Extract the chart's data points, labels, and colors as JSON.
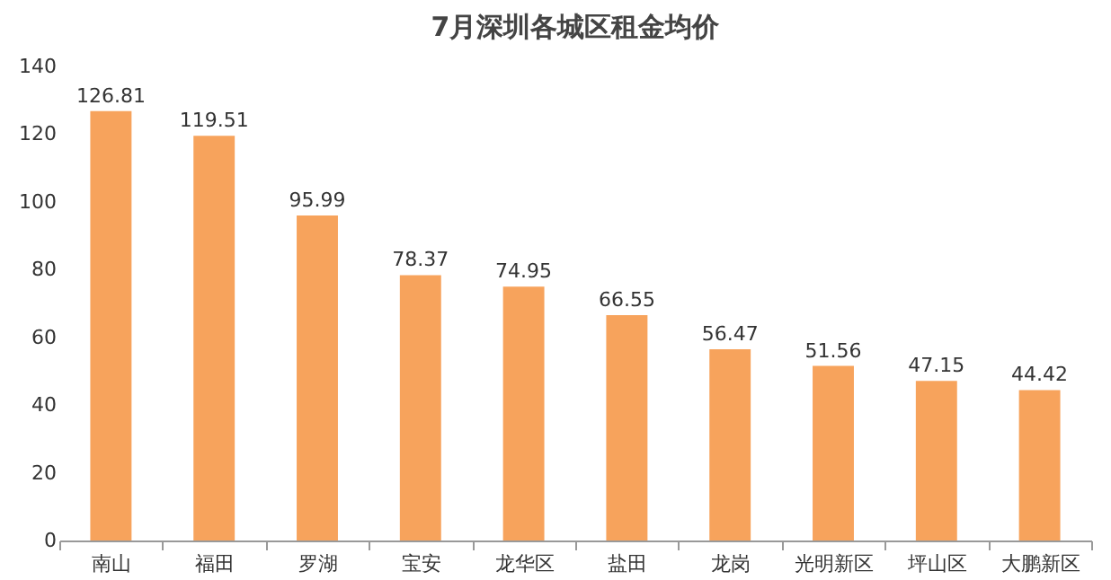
{
  "chart_data": {
    "type": "bar",
    "title": "7月深圳各城区租金均价",
    "categories": [
      "南山",
      "福田",
      "罗湖",
      "宝安",
      "龙华区",
      "盐田",
      "龙岗",
      "光明新区",
      "坪山区",
      "大鹏新区"
    ],
    "values": [
      126.81,
      119.51,
      95.99,
      78.37,
      74.95,
      66.55,
      56.47,
      51.56,
      47.15,
      44.42
    ],
    "color": "#f7a35c",
    "ylim": [
      0,
      140
    ],
    "yticks": [
      0,
      20,
      40,
      60,
      80,
      100,
      120,
      140
    ],
    "grid": false,
    "data_labels": true
  }
}
